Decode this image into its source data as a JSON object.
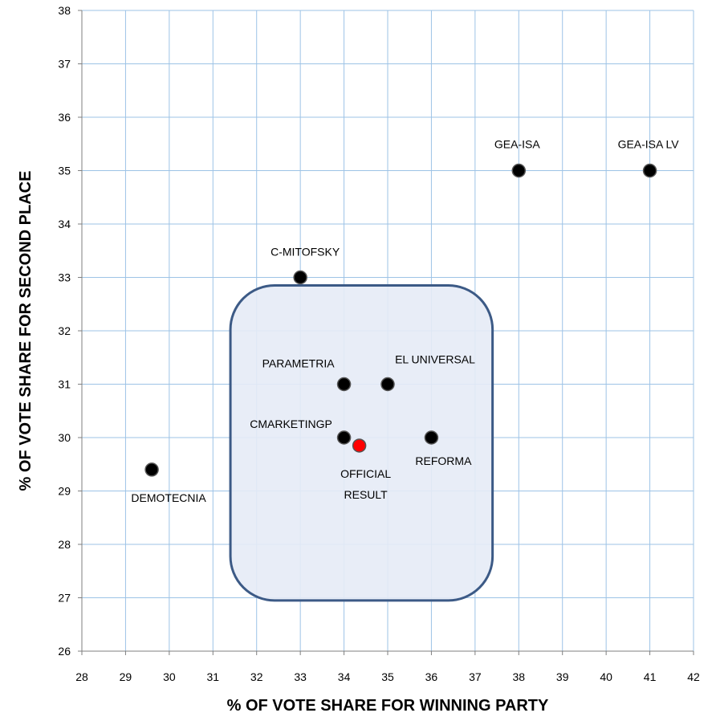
{
  "chart_data": {
    "type": "scatter",
    "xlabel": "% OF VOTE SHARE FOR WINNING PARTY",
    "ylabel": "% OF VOTE SHARE FOR SECOND PLACE",
    "xlim": [
      28,
      42
    ],
    "ylim": [
      26,
      38
    ],
    "x_ticks": [
      28,
      29,
      30,
      31,
      32,
      33,
      34,
      35,
      36,
      37,
      38,
      39,
      40,
      41,
      42
    ],
    "y_ticks": [
      26,
      27,
      28,
      29,
      30,
      31,
      32,
      33,
      34,
      35,
      36,
      37,
      38
    ],
    "grid": true,
    "legend": "none",
    "points": [
      {
        "label": "GEA-ISA",
        "x": 38,
        "y": 35,
        "color": "#000000"
      },
      {
        "label": "GEA-ISA LV",
        "x": 41,
        "y": 35,
        "color": "#000000"
      },
      {
        "label": "C-MITOFSKY",
        "x": 33,
        "y": 33,
        "color": "#000000"
      },
      {
        "label": "PARAMETRIA",
        "x": 34,
        "y": 31,
        "color": "#000000"
      },
      {
        "label": "EL UNIVERSAL",
        "x": 35,
        "y": 31,
        "color": "#000000"
      },
      {
        "label": "CMARKETINGP",
        "x": 34,
        "y": 30,
        "color": "#000000"
      },
      {
        "label": "REFORMA",
        "x": 36,
        "y": 30,
        "color": "#000000"
      },
      {
        "label": "DEMOTECNIA",
        "x": 29.6,
        "y": 29.4,
        "color": "#000000"
      },
      {
        "label": "OFFICIAL RESULT",
        "x": 34.35,
        "y": 29.85,
        "color": "#ff0000"
      }
    ],
    "highlight_region": {
      "x": [
        31.4,
        37.4
      ],
      "y": [
        26.95,
        32.85
      ],
      "fill": "#e5ebf6",
      "stroke": "#3c5a86"
    },
    "colors": {
      "grid": "#9dc3e6",
      "point": "#000000",
      "official": "#ff0000"
    }
  }
}
